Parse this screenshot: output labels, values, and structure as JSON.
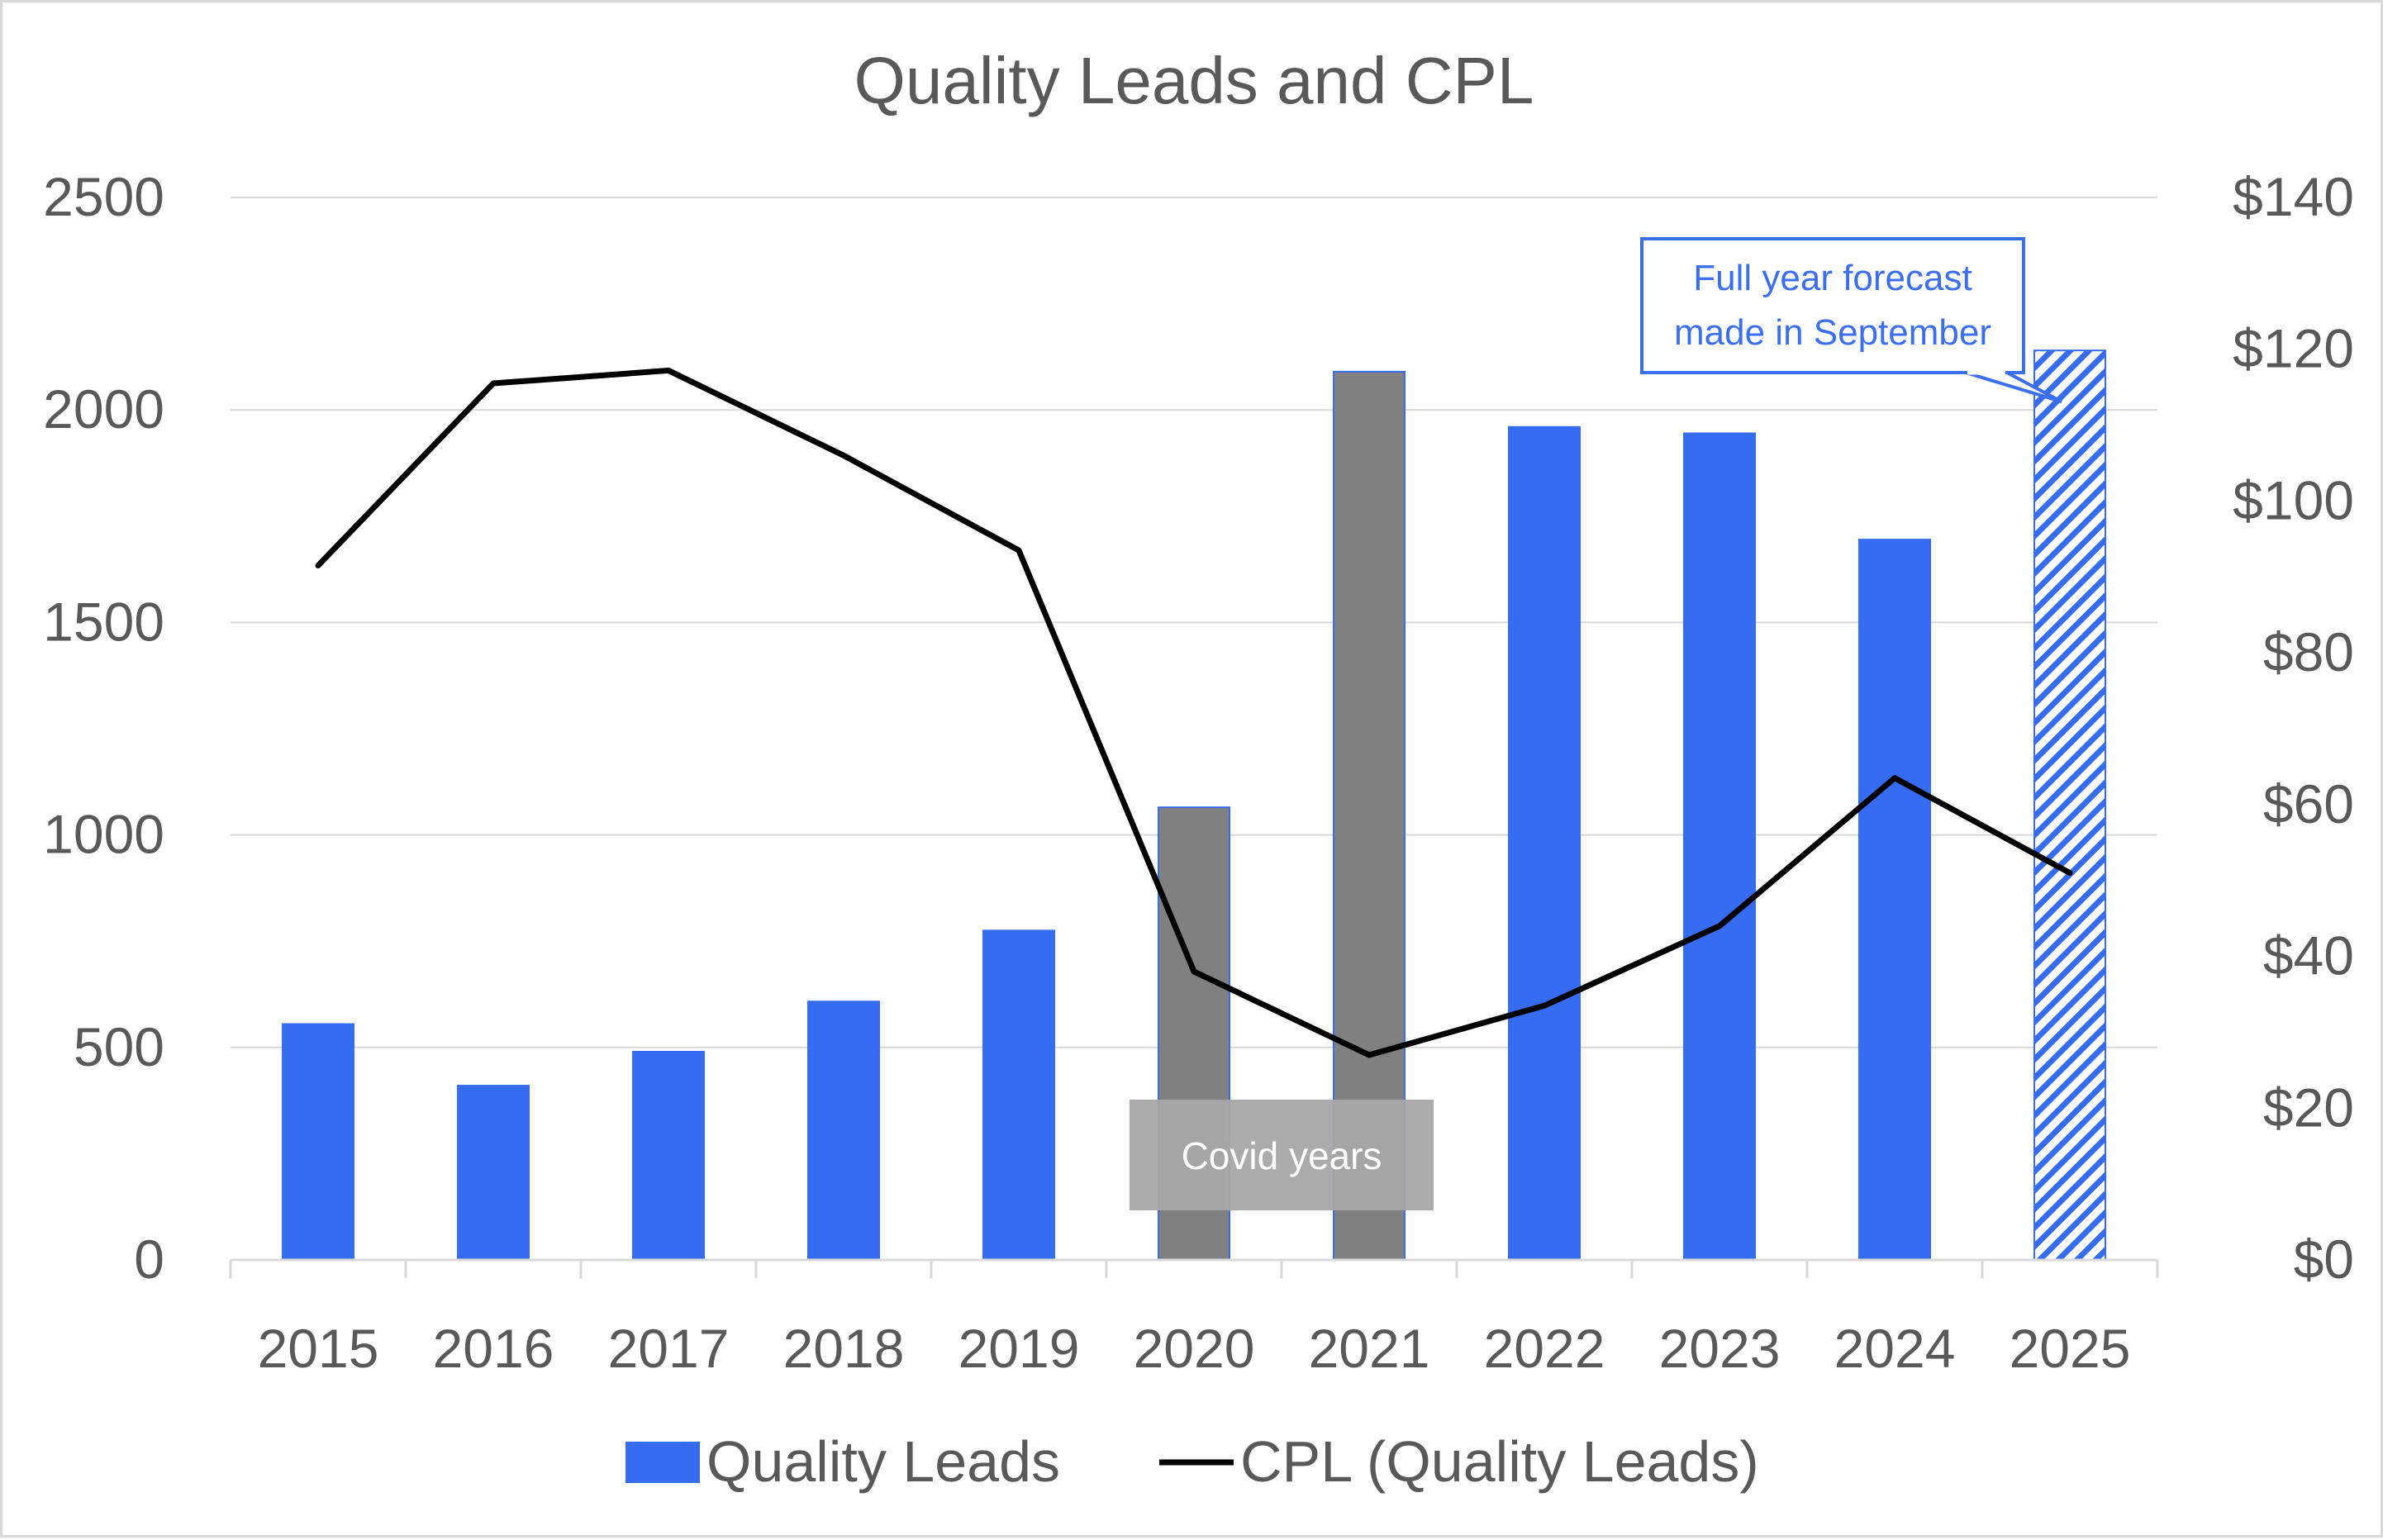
{
  "colors": {
    "bar": "#366cf2",
    "bar_covid": "#808080",
    "line": "#000000",
    "grid": "#d9d9d9",
    "text": "#595959",
    "annotation": "#3b6ff0",
    "covid_box": "#a6a6a6"
  },
  "chart_data": {
    "type": "bar",
    "title": "Quality Leads and CPL",
    "categories": [
      "2015",
      "2016",
      "2017",
      "2018",
      "2019",
      "2020",
      "2021",
      "2022",
      "2023",
      "2024",
      "2025"
    ],
    "series": [
      {
        "name": "Quality Leads",
        "type": "bar",
        "axis": "left",
        "values": [
          555,
          410,
          490,
          608,
          775,
          1065,
          2090,
          1960,
          1945,
          1695,
          2140
        ],
        "highlighted_gray": [
          "2020",
          "2021"
        ],
        "hatched_forecast": [
          "2025"
        ]
      },
      {
        "name": "CPL (Quality Leads)",
        "type": "line",
        "axis": "right",
        "values": [
          91.5,
          115.5,
          117.2,
          106,
          93.5,
          38,
          27,
          33.5,
          44,
          63.5,
          51
        ]
      }
    ],
    "y_left": {
      "min": 0,
      "max": 2500,
      "ticks": [
        "0",
        "500",
        "1000",
        "1500",
        "2000",
        "2500"
      ]
    },
    "y_right": {
      "min": 0,
      "max": 140,
      "ticks": [
        "$0",
        "$20",
        "$40",
        "$60",
        "$80",
        "$100",
        "$120",
        "$140"
      ]
    },
    "grid": true,
    "legend_position": "bottom",
    "annotations": {
      "forecast_line1": "Full year forecast",
      "forecast_line2": "made in September",
      "covid": "Covid years"
    }
  }
}
